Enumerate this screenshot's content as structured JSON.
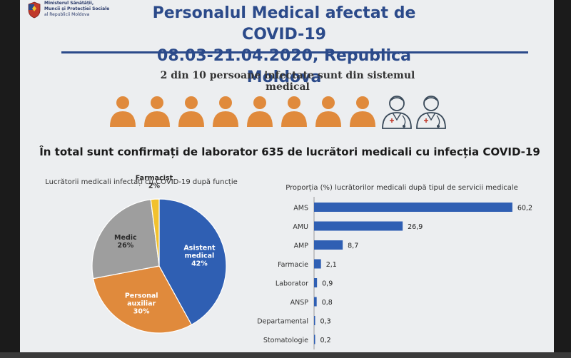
{
  "ministry": {
    "lines": [
      "Ministerul Sănătății,",
      "Muncii și Protecției Sociale",
      "al Republicii Moldova"
    ]
  },
  "title": {
    "line1": "Personalul Medical afectat de COVID-19",
    "line2": "08.03-21.04.2020, Republica Moldova"
  },
  "subtitle": "2 din 10 persoane infectate sunt din sistemul medical",
  "people": {
    "total": 10,
    "medical": 2,
    "person_color": "#e08a3c",
    "medic_color": "#3a4a5a"
  },
  "total_text": "În total sunt confirmați de laborator 635  de lucrători medicali cu infecția COVID-19",
  "chart_data": [
    {
      "type": "pie",
      "title": "Lucrătorii medicali infectați cu  COVID-19 după funcție",
      "slices": [
        {
          "label": "Asistent medical",
          "value": 42,
          "display": "42%",
          "color": "#2f5fb3"
        },
        {
          "label": "Personal auxiliar",
          "value": 30,
          "display": "30%",
          "color": "#e08a3c"
        },
        {
          "label": "Medic",
          "value": 26,
          "display": "26%",
          "color": "#9e9e9e"
        },
        {
          "label": "Farmacist",
          "value": 2,
          "display": "2%",
          "color": "#f2c12e"
        }
      ]
    },
    {
      "type": "bar",
      "orientation": "horizontal",
      "title": "Proporția (%) lucrătorilor medicali după tipul de servicii medicale",
      "categories": [
        "AMS",
        "AMU",
        "AMP",
        "Farmacie",
        "Laborator",
        "ANSP",
        "Departamental",
        "Stomatologie"
      ],
      "values": [
        60.2,
        26.9,
        8.7,
        2.1,
        0.9,
        0.8,
        0.3,
        0.2
      ],
      "value_labels": [
        "60,2",
        "26,9",
        "8,7",
        "2,1",
        "0,9",
        "0,8",
        "0,3",
        "0,2"
      ],
      "xlim": [
        0,
        65
      ],
      "color": "#2f5fb3"
    }
  ]
}
